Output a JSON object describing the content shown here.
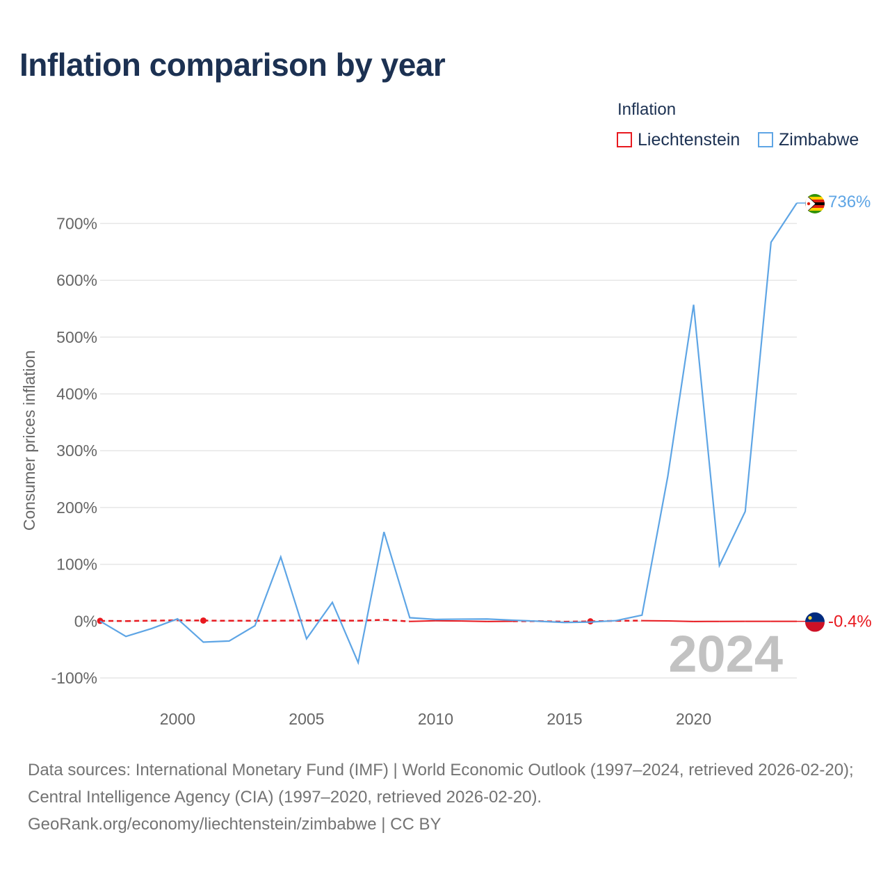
{
  "title": "Inflation comparison by year",
  "legend": {
    "title": "Inflation",
    "items": [
      {
        "label": "Liechtenstein",
        "color": "#e8191f"
      },
      {
        "label": "Zimbabwe",
        "color": "#5ea5e5"
      }
    ]
  },
  "year_watermark": "2024",
  "footer": {
    "sources": "Data sources: International Monetary Fund (IMF) | World Economic Outlook (1997–2024, retrieved 2026-02-20); Central Intelligence Agency (CIA) (1997–2020, retrieved 2026-02-20).",
    "url": "GeoRank.org/economy/liechtenstein/zimbabwe | CC BY"
  },
  "chart_data": {
    "type": "line",
    "title": "Inflation comparison by year",
    "xlabel": "",
    "ylabel": "Consumer prices inflation",
    "xlim": [
      1997,
      2024
    ],
    "ylim": [
      -100,
      736
    ],
    "xticks": [
      2000,
      2005,
      2010,
      2015,
      2020
    ],
    "xtick_labels": [
      "2000",
      "2005",
      "2010",
      "2015",
      "2020"
    ],
    "yticks": [
      -100,
      0,
      100,
      200,
      300,
      400,
      500,
      600,
      700
    ],
    "ytick_labels": [
      "-100%",
      "0%",
      "100%",
      "200%",
      "300%",
      "400%",
      "500%",
      "600%",
      "700%"
    ],
    "grid": true,
    "legend_position": "top-right",
    "series": [
      {
        "name": "Zimbabwe",
        "color": "#5ea5e5",
        "x": [
          1997,
          1998,
          1999,
          2000,
          2001,
          2002,
          2003,
          2004,
          2005,
          2006,
          2007,
          2008,
          2009,
          2010,
          2011,
          2012,
          2013,
          2014,
          2015,
          2016,
          2017,
          2018,
          2019,
          2020,
          2021,
          2022,
          2023,
          2024
        ],
        "values": [
          0,
          -27,
          -13,
          4,
          -37,
          -35,
          -8,
          113,
          -31,
          33,
          -73,
          157,
          6,
          3,
          3.5,
          3.7,
          1.6,
          -0.2,
          -2.4,
          -1.6,
          0.9,
          10.6,
          255,
          557,
          98,
          193,
          667,
          736
        ],
        "end_label": "736%"
      },
      {
        "name": "Liechtenstein",
        "color": "#e8191f",
        "x": [
          1997,
          1998,
          1999,
          2000,
          2001,
          2002,
          2003,
          2004,
          2005,
          2006,
          2007,
          2008,
          2009,
          2010,
          2011,
          2012,
          2013,
          2014,
          2015,
          2016,
          2017,
          2018,
          2019,
          2020,
          2021,
          2022,
          2023,
          2024
        ],
        "values": [
          0.5,
          0.1,
          0.8,
          1.5,
          1,
          0.6,
          0.6,
          0.8,
          1.2,
          1.1,
          0.7,
          2.4,
          -0.5,
          0.7,
          0.2,
          -0.7,
          -0.2,
          0,
          -1.1,
          -0.4,
          0.5,
          0.9,
          0.4,
          -0.7,
          -0.5,
          -0.4,
          -0.4,
          -0.4
        ],
        "estimated_range": [
          [
            1997,
            2009
          ],
          [
            2013,
            2018
          ]
        ],
        "marked_points": [
          1997,
          2001,
          2016
        ],
        "end_label": "-0.4%"
      }
    ]
  }
}
